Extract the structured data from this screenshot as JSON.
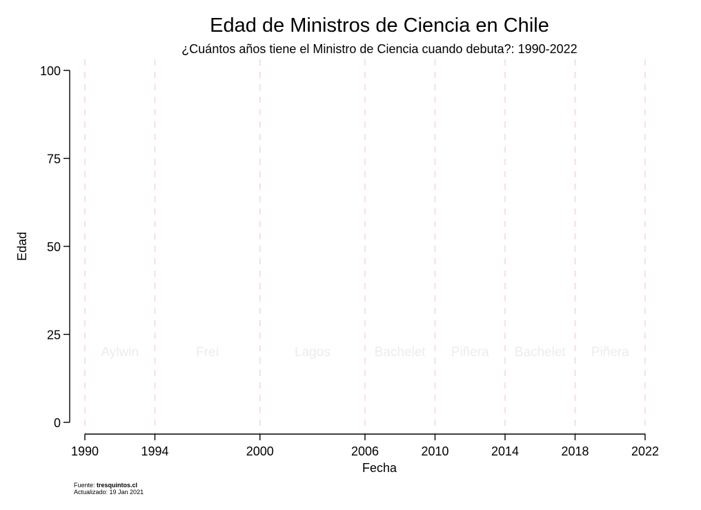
{
  "chart_data": {
    "type": "scatter",
    "title": "Edad de Ministros de Ciencia en Chile",
    "subtitle": "¿Cuántos años tiene el Ministro de Ciencia cuando debuta?: 1990-2022",
    "xlabel": "Fecha",
    "ylabel": "Edad",
    "xlim": [
      1990,
      2022
    ],
    "ylim": [
      0,
      100
    ],
    "x_ticks": [
      1990,
      1994,
      2000,
      2006,
      2010,
      2014,
      2018,
      2022
    ],
    "y_ticks": [
      0,
      25,
      50,
      75,
      100
    ],
    "grid": false,
    "period_boundaries": [
      1990,
      1994,
      2000,
      2006,
      2010,
      2014,
      2018,
      2022
    ],
    "periods": [
      {
        "label": "Aylwin",
        "start": 1990,
        "end": 1994
      },
      {
        "label": "Frei",
        "start": 1994,
        "end": 2000
      },
      {
        "label": "Lagos",
        "start": 2000,
        "end": 2006
      },
      {
        "label": "Bachelet",
        "start": 2006,
        "end": 2010
      },
      {
        "label": "Piñera",
        "start": 2010,
        "end": 2014
      },
      {
        "label": "Bachelet",
        "start": 2014,
        "end": 2018
      },
      {
        "label": "Piñera",
        "start": 2018,
        "end": 2022
      }
    ],
    "period_label_y": 20,
    "series": [],
    "colors": {
      "boundary": "#f3cccc",
      "period_label": "#ececec",
      "axis": "#000000"
    }
  },
  "footer": {
    "source_label": "Fuente: ",
    "source_value": "tresquintos.cl",
    "updated": "Actualizado: 19 Jan 2021"
  }
}
